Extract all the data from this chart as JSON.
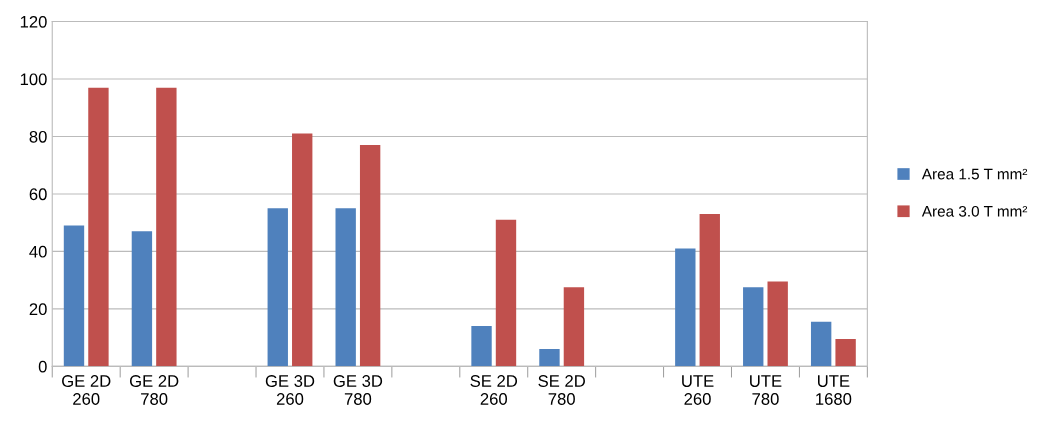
{
  "chart_data": {
    "type": "bar",
    "categories": [
      "GE 2D\n260",
      "GE 2D\n780",
      null,
      "GE 3D\n260",
      "GE 3D\n780",
      null,
      "SE 2D\n260",
      "SE 2D\n780",
      null,
      "UTE\n260",
      "UTE\n780",
      "UTE\n1680"
    ],
    "series": [
      {
        "name": "Area 1.5 T mm²",
        "color": "#4f81bd",
        "values": [
          49,
          47,
          null,
          55,
          55,
          null,
          14,
          6,
          null,
          41,
          27.5,
          15.5
        ]
      },
      {
        "name": "Area 3.0 T mm²",
        "color": "#c0504d",
        "values": [
          97,
          97,
          null,
          81,
          77,
          null,
          51,
          27.5,
          null,
          53,
          29.5,
          9.5
        ]
      }
    ],
    "ylim": [
      0,
      120
    ],
    "yticks": [
      0,
      20,
      40,
      60,
      80,
      100,
      120
    ],
    "grid": "y",
    "legend": "right"
  }
}
